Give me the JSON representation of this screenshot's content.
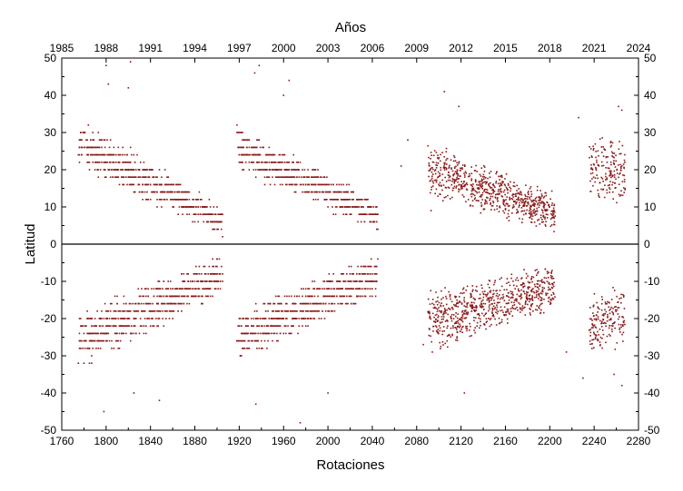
{
  "chart_data": {
    "type": "scatter",
    "title": "",
    "xlabel": "Rotaciones",
    "ylabel": "Latitud",
    "x2label": "Años",
    "xlim": [
      1760,
      2280
    ],
    "ylim": [
      -50,
      50
    ],
    "x_ticks": [
      1760,
      1800,
      1840,
      1880,
      1920,
      1960,
      2000,
      2040,
      2080,
      2120,
      2160,
      2200,
      2240,
      2280
    ],
    "y_ticks": [
      -50,
      -40,
      -30,
      -20,
      -10,
      0,
      10,
      20,
      30,
      40,
      50
    ],
    "top_axis": {
      "ticks": [
        {
          "label": "1985",
          "rotation": 1760
        },
        {
          "label": "1988",
          "rotation": 1800
        },
        {
          "label": "1991",
          "rotation": 1840
        },
        {
          "label": "1994",
          "rotation": 1880
        },
        {
          "label": "1997",
          "rotation": 1920
        },
        {
          "label": "2000",
          "rotation": 1960
        },
        {
          "label": "2003",
          "rotation": 2000
        },
        {
          "label": "2006",
          "rotation": 2040
        },
        {
          "label": "2009",
          "rotation": 2080
        },
        {
          "label": "2012",
          "rotation": 2120
        },
        {
          "label": "2015",
          "rotation": 2160
        },
        {
          "label": "2018",
          "rotation": 2200
        },
        {
          "label": "2021",
          "rotation": 2240
        },
        {
          "label": "2024",
          "rotation": 2280
        }
      ]
    },
    "zero_line": true,
    "grid": false,
    "marker_color": "#8b1a1a",
    "clusters": [
      {
        "hemisphere": "north",
        "rot_range": [
          1775,
          1905
        ],
        "lat_start": [
          20,
          34
        ],
        "lat_end": [
          2,
          10
        ],
        "count": 650,
        "step": 2
      },
      {
        "hemisphere": "south",
        "rot_range": [
          1775,
          1905
        ],
        "lat_start": [
          -34,
          -18
        ],
        "lat_end": [
          -14,
          -2
        ],
        "count": 650,
        "step": 2
      },
      {
        "hemisphere": "north",
        "rot_range": [
          1918,
          2045
        ],
        "lat_start": [
          20,
          32
        ],
        "lat_end": [
          3,
          12
        ],
        "count": 620,
        "step": 2
      },
      {
        "hemisphere": "south",
        "rot_range": [
          1918,
          2045
        ],
        "lat_start": [
          -32,
          -18
        ],
        "lat_end": [
          -14,
          -2
        ],
        "count": 620,
        "step": 2
      },
      {
        "hemisphere": "north",
        "rot_range": [
          2090,
          2205
        ],
        "lat_start": [
          12,
          28
        ],
        "lat_end": [
          3,
          14
        ],
        "count": 700,
        "step": 0
      },
      {
        "hemisphere": "south",
        "rot_range": [
          2090,
          2205
        ],
        "lat_start": [
          -30,
          -12
        ],
        "lat_end": [
          -18,
          -5
        ],
        "count": 700,
        "step": 0
      },
      {
        "hemisphere": "north",
        "rot_range": [
          2235,
          2268
        ],
        "lat_start": [
          12,
          30
        ],
        "lat_end": [
          10,
          28
        ],
        "count": 170,
        "step": 0
      },
      {
        "hemisphere": "south",
        "rot_range": [
          2235,
          2268
        ],
        "lat_start": [
          -30,
          -12
        ],
        "lat_end": [
          -28,
          -10
        ],
        "count": 170,
        "step": 0
      }
    ],
    "outliers": [
      {
        "x": 1800,
        "y": 48
      },
      {
        "x": 1822,
        "y": 49
      },
      {
        "x": 1802,
        "y": 43
      },
      {
        "x": 1820,
        "y": 42
      },
      {
        "x": 1934,
        "y": 46
      },
      {
        "x": 1938,
        "y": 48
      },
      {
        "x": 1965,
        "y": 44
      },
      {
        "x": 1960,
        "y": 40
      },
      {
        "x": 2105,
        "y": 41
      },
      {
        "x": 2118,
        "y": 37
      },
      {
        "x": 2262,
        "y": 37
      },
      {
        "x": 2265,
        "y": 36
      },
      {
        "x": 2072,
        "y": 28
      },
      {
        "x": 2066,
        "y": 21
      },
      {
        "x": 2093,
        "y": 9
      },
      {
        "x": 2226,
        "y": 34
      },
      {
        "x": 1798,
        "y": -45
      },
      {
        "x": 1825,
        "y": -40
      },
      {
        "x": 1848,
        "y": -42
      },
      {
        "x": 1935,
        "y": -43
      },
      {
        "x": 1975,
        "y": -48
      },
      {
        "x": 2123,
        "y": -40
      },
      {
        "x": 2265,
        "y": -38
      },
      {
        "x": 2258,
        "y": -35
      },
      {
        "x": 2230,
        "y": -36
      },
      {
        "x": 2086,
        "y": -27
      },
      {
        "x": 2215,
        "y": -29
      },
      {
        "x": 2000,
        "y": -40
      }
    ]
  }
}
